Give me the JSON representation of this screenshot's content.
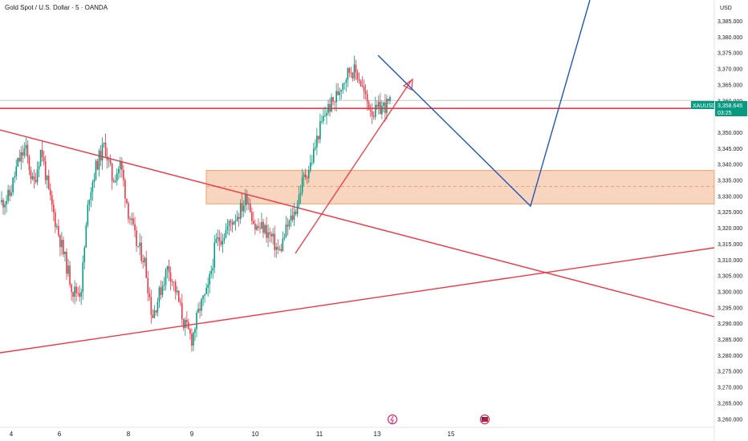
{
  "header": {
    "title": "Gold Spot / U.S. Dollar · 5 · OANDA"
  },
  "price_axis": {
    "currency": "USD",
    "ticks": [
      "3,385.000",
      "3,380.000",
      "3,375.000",
      "3,370.000",
      "3,365.000",
      "3,360.000",
      "3,350.000",
      "3,345.000",
      "3,340.000",
      "3,335.000",
      "3,330.000",
      "3,325.000",
      "3,320.000",
      "3,315.000",
      "3,310.000",
      "3,305.000",
      "3,300.000",
      "3,295.000",
      "3,290.000",
      "3,285.000",
      "3,280.000",
      "3,275.000",
      "3,270.000",
      "3,265.000",
      "3,260.000"
    ],
    "symbol_label": "XAUUSD",
    "last_price": "3,358.645",
    "countdown": "03:25"
  },
  "time_axis": {
    "labels": [
      "4",
      "6",
      "8",
      "9",
      "10",
      "11",
      "13",
      "15"
    ]
  },
  "colors": {
    "up": "#089981",
    "down": "#f23645",
    "trend_red": "#f23645",
    "projection_blue": "#2157b8",
    "zone_fill": "#f6c7a8",
    "zone_border": "#f3a16f",
    "tag_green": "#089981"
  },
  "icons": [
    "lightning-event-icon",
    "us-flag-event-icon"
  ],
  "chart_data": {
    "type": "candlestick",
    "ylim": [
      3257,
      3392
    ],
    "x": [
      "4",
      "6",
      "8",
      "9",
      "10",
      "11",
      "13",
      "15"
    ],
    "price_path": [
      [
        3328,
        3330
      ],
      [
        3340,
        3345
      ],
      [
        3333,
        3345
      ],
      [
        3330,
        3320
      ],
      [
        3310,
        3300
      ],
      [
        3300,
        3330
      ],
      [
        3340,
        3346
      ],
      [
        3335,
        3340
      ],
      [
        3325,
        3315
      ],
      [
        3310,
        3292
      ],
      [
        3300,
        3308
      ],
      [
        3300,
        3290
      ],
      [
        3285,
        3295
      ],
      [
        3300,
        3315
      ],
      [
        3318,
        3322
      ],
      [
        3325,
        3330
      ],
      [
        3320,
        3320
      ],
      [
        3317,
        3312
      ],
      [
        3320,
        3325
      ],
      [
        3335,
        3340
      ],
      [
        3350,
        3357
      ],
      [
        3360,
        3366
      ],
      [
        3370,
        3368
      ],
      [
        3360,
        3356
      ],
      [
        3358,
        3359
      ]
    ],
    "last_price": 3358.645,
    "horizontal_level": 3357.5,
    "support_zone": [
      3327.5,
      3338
    ],
    "zone_midline": 3333,
    "trendlines": {
      "descending": [
        [
          "4",
          3351
        ],
        [
          "15+",
          3292
        ]
      ],
      "ascending": [
        [
          "4",
          3281
        ],
        [
          "15+",
          3314
        ]
      ],
      "short_rising": [
        [
          "11",
          3311
        ],
        [
          "13",
          3366
        ]
      ]
    },
    "projection": [
      [
        3374,
        "13"
      ],
      [
        3327,
        "15+"
      ],
      [
        3392,
        "15++"
      ]
    ]
  }
}
